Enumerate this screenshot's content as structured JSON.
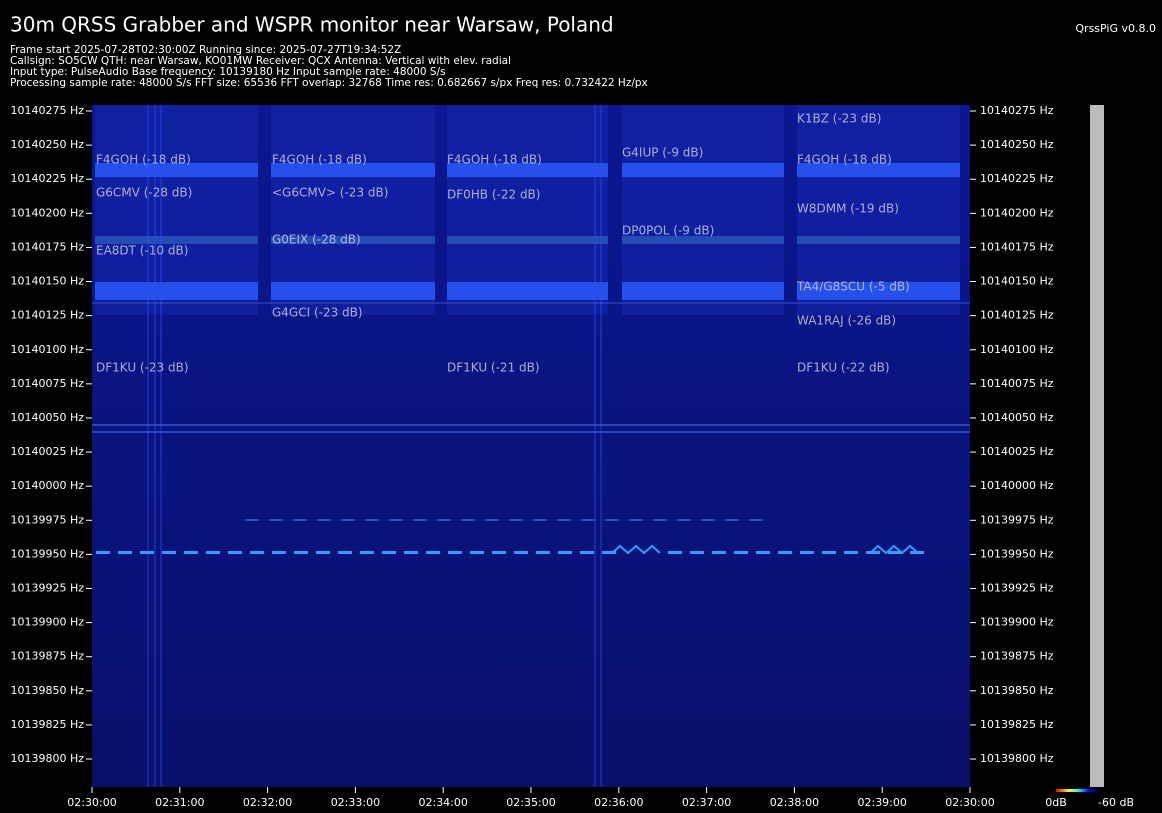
{
  "chart_data": {
    "type": "spectrogram",
    "title": "30m QRSS Grabber and WSPR monitor near Warsaw, Poland",
    "version": "QrssPiG v0.8.0",
    "subtitle": [
      "Frame start 2025-07-28T02:30:00Z Running since: 2025-07-27T19:34:52Z",
      "Callsign: SO5CW QTH: near Warsaw, KO01MW Receiver: QCX Antenna: Vertical with elev. radial",
      "Input type: PulseAudio Base frequency: 10139180 Hz Input sample rate: 48000 S/s",
      "Processing sample rate: 48000 S/s FFT size: 65536 FFT overlap: 32768 Time res: 0.682667 s/px Freq res: 0.732422 Hz/px"
    ],
    "categories": [
      "02:30:00",
      "02:31:00",
      "02:32:00",
      "02:33:00",
      "02:34:00",
      "02:35:00",
      "02:36:00",
      "02:37:00",
      "02:38:00",
      "02:39:00",
      "02:30:00"
    ],
    "ylim": [
      10139779.5,
      10140279.4
    ],
    "yticks": [
      {
        "value": 10140275,
        "label": "10140275 Hz"
      },
      {
        "value": 10140250,
        "label": "10140250 Hz"
      },
      {
        "value": 10140225,
        "label": "10140225 Hz"
      },
      {
        "value": 10140200,
        "label": "10140200 Hz"
      },
      {
        "value": 10140175,
        "label": "10140175 Hz"
      },
      {
        "value": 10140150,
        "label": "10140150 Hz"
      },
      {
        "value": 10140125,
        "label": "10140125 Hz"
      },
      {
        "value": 10140100,
        "label": "10140100 Hz"
      },
      {
        "value": 10140075,
        "label": "10140075 Hz"
      },
      {
        "value": 10140050,
        "label": "10140050 Hz"
      },
      {
        "value": 10140025,
        "label": "10140025 Hz"
      },
      {
        "value": 10140000,
        "label": "10140000 Hz"
      },
      {
        "value": 10139975,
        "label": "10139975 Hz"
      },
      {
        "value": 10139950,
        "label": "10139950 Hz"
      },
      {
        "value": 10139925,
        "label": "10139925 Hz"
      },
      {
        "value": 10139900,
        "label": "10139900 Hz"
      },
      {
        "value": 10139875,
        "label": "10139875 Hz"
      },
      {
        "value": 10139850,
        "label": "10139850 Hz"
      },
      {
        "value": 10139825,
        "label": "10139825 Hz"
      },
      {
        "value": 10139800,
        "label": "10139800 Hz"
      }
    ],
    "annotations": [
      "F4GOH (-18 dB)",
      "G6CMV (-28 dB)",
      "EA8DT (-10 dB)",
      "DF1KU (-23 dB)",
      "F4GOH (-18 dB)",
      "<G6CMV> (-23 dB)",
      "G0EIX (-28 dB)",
      "G4GCI (-23 dB)",
      "F4GOH (-18 dB)",
      "DF0HB (-22 dB)",
      "DF1KU (-21 dB)",
      "G4IUP (-9 dB)",
      "DP0POL (-9 dB)",
      "K1BZ (-23 dB)",
      "F4GOH (-18 dB)",
      "W8DMM (-19 dB)",
      "TA4/G8SCU (-5 dB)",
      "WA1RAJ (-26 dB)",
      "DF1KU (-22 dB)"
    ],
    "colorbar_labels": [
      "0dB",
      "-60 dB"
    ]
  }
}
